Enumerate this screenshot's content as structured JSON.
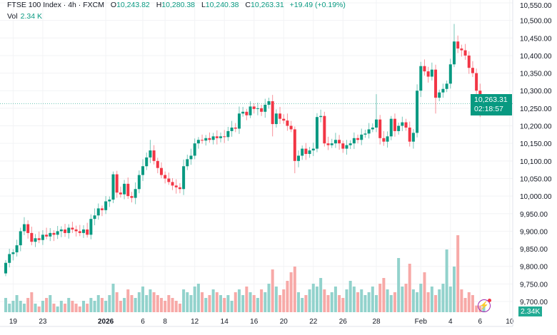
{
  "header": {
    "symbol": "FTSE 100 Index · 4h · FXCM",
    "o_label": "O",
    "o": "10,243.82",
    "h_label": "H",
    "h": "10,280.38",
    "l_label": "L",
    "l": "10,240.38",
    "c_label": "C",
    "c": "10,263.31",
    "change": "+19.49 (+0.19%)",
    "vol_label": "Vol",
    "vol": "2.34 K"
  },
  "current_price": {
    "price": "10,263.31",
    "countdown": "02:18:57",
    "value": 10263.31
  },
  "current_volume": "2.34K",
  "colors": {
    "up": "#089981",
    "down": "#f23645",
    "up_vol": "#92d2cc",
    "down_vol": "#f7a9a7",
    "grid": "#f2f3f5"
  },
  "chart_data": {
    "type": "candlestick",
    "title": "FTSE 100 Index · 4h · FXCM",
    "ylim": [
      9700,
      10550
    ],
    "y_ticks": [
      "10,550.00",
      "10,500.00",
      "10,450.00",
      "10,400.00",
      "10,350.00",
      "10,300.00",
      "10,250.00",
      "10,200.00",
      "10,150.00",
      "10,100.00",
      "10,050.00",
      "10,000.00",
      "9,950.00",
      "9,900.00",
      "9,850.00",
      "9,800.00",
      "9,750.00",
      "9,700.00"
    ],
    "x_ticks": [
      {
        "label": "19",
        "index": 2
      },
      {
        "label": "23",
        "index": 10
      },
      {
        "label": "2026",
        "index": 27
      },
      {
        "label": "6",
        "index": 37
      },
      {
        "label": "8",
        "index": 43
      },
      {
        "label": "12",
        "index": 51
      },
      {
        "label": "14",
        "index": 59
      },
      {
        "label": "16",
        "index": 67
      },
      {
        "label": "20",
        "index": 75
      },
      {
        "label": "22",
        "index": 83
      },
      {
        "label": "26",
        "index": 91
      },
      {
        "label": "28",
        "index": 100
      },
      {
        "label": "Feb",
        "index": 112
      },
      {
        "label": "4",
        "index": 120
      },
      {
        "label": "6",
        "index": 128
      },
      {
        "label": "10",
        "index": 136
      }
    ],
    "first_open": 9780,
    "close": [
      9810,
      9835,
      9840,
      9860,
      9900,
      9920,
      9895,
      9870,
      9880,
      9875,
      9890,
      9885,
      9895,
      9890,
      9900,
      9905,
      9895,
      9910,
      9905,
      9900,
      9895,
      9905,
      9890,
      9935,
      9945,
      9965,
      9960,
      9985,
      9990,
      10062,
      10010,
      10005,
      10035,
      10000,
      9995,
      10020,
      10060,
      10085,
      10110,
      10130,
      10100,
      10080,
      10060,
      10050,
      10040,
      10030,
      10025,
      10020,
      10085,
      10105,
      10115,
      10150,
      10160,
      10158,
      10165,
      10160,
      10170,
      10165,
      10170,
      10168,
      10185,
      10195,
      10192,
      10235,
      10240,
      10230,
      10255,
      10248,
      10250,
      10240,
      10260,
      10270,
      10205,
      10235,
      10220,
      10215,
      10200,
      10190,
      10100,
      10115,
      10135,
      10120,
      10130,
      10135,
      10225,
      10228,
      10150,
      10145,
      10150,
      10160,
      10150,
      10135,
      10145,
      10150,
      10165,
      10160,
      10175,
      10178,
      10190,
      10195,
      10218,
      10165,
      10155,
      10170,
      10220,
      10185,
      10200,
      10210,
      10195,
      10155,
      10180,
      10300,
      10370,
      10355,
      10340,
      10360,
      10280,
      10295,
      10305,
      10320,
      10375,
      10440,
      10420,
      10415,
      10400,
      10365,
      10350,
      10300,
      10245,
      10263.31
    ],
    "notable_highs": [
      {
        "index": 5,
        "high": 9940
      },
      {
        "index": 29,
        "high": 10070
      },
      {
        "index": 39,
        "high": 10160
      },
      {
        "index": 71,
        "high": 10280
      },
      {
        "index": 100,
        "high": 10290
      },
      {
        "index": 121,
        "high": 10490
      }
    ],
    "notable_lows": [
      {
        "index": 72,
        "low": 10170
      },
      {
        "index": 78,
        "low": 10065
      },
      {
        "index": 110,
        "low": 10135
      },
      {
        "index": 116,
        "low": 10235
      },
      {
        "index": 128,
        "low": 10225
      }
    ],
    "volume_k": [
      5,
      3,
      4,
      6,
      4,
      3,
      5,
      7,
      3,
      2,
      4,
      5,
      6,
      3,
      2,
      4,
      3,
      5,
      4,
      3,
      2,
      4,
      3,
      5,
      4,
      6,
      5,
      4,
      6,
      10,
      7,
      4,
      5,
      8,
      6,
      5,
      7,
      9,
      6,
      8,
      7,
      6,
      5,
      4,
      6,
      5,
      4,
      3,
      8,
      7,
      6,
      9,
      10,
      7,
      5,
      6,
      8,
      7,
      6,
      5,
      6,
      4,
      7,
      8,
      6,
      9,
      7,
      6,
      5,
      8,
      7,
      10,
      15,
      9,
      6,
      8,
      11,
      14,
      16,
      7,
      5,
      6,
      8,
      10,
      9,
      12,
      8,
      6,
      7,
      9,
      6,
      5,
      8,
      11,
      9,
      7,
      8,
      6,
      7,
      9,
      6,
      10,
      12,
      8,
      6,
      7,
      19,
      9,
      10,
      17,
      8,
      7,
      10,
      14,
      7,
      9,
      6,
      8,
      10,
      22,
      9,
      16,
      27,
      8,
      5,
      7,
      6,
      2.34,
      2.34,
      2.34
    ]
  }
}
